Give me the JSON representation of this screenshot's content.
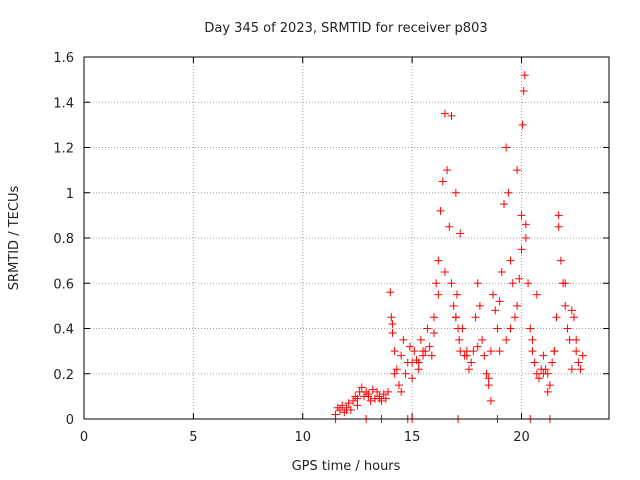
{
  "chart_data": {
    "type": "scatter",
    "title": "Day 345 of 2023, SRMTID for receiver p803",
    "xlabel": "GPS time / hours",
    "ylabel": "SRMTID / TECUs",
    "xlim": [
      0,
      24
    ],
    "ylim": [
      0,
      1.6
    ],
    "xticks": [
      0,
      5,
      10,
      15,
      20
    ],
    "yticks": [
      0,
      0.2,
      0.4,
      0.6,
      0.8,
      1,
      1.2,
      1.4,
      1.6
    ],
    "grid": true,
    "legend": "none",
    "marker": "+",
    "colors": {
      "series": "#ff0000",
      "axes": "#000000",
      "grid": "#a0a0a0"
    },
    "series": [
      {
        "name": "SRMTID",
        "x": [
          11.5,
          11.6,
          11.7,
          11.8,
          11.9,
          12.0,
          12.1,
          12.2,
          12.3,
          12.4,
          12.5,
          12.6,
          12.7,
          12.8,
          12.9,
          13.0,
          13.1,
          13.2,
          13.3,
          13.4,
          13.5,
          13.6,
          13.7,
          13.8,
          13.9,
          14.0,
          14.05,
          14.1,
          14.2,
          14.3,
          14.4,
          14.5,
          14.6,
          14.7,
          14.8,
          14.9,
          15.0,
          15.1,
          15.2,
          15.3,
          15.4,
          15.5,
          15.6,
          15.7,
          15.8,
          15.9,
          16.0,
          16.1,
          16.2,
          16.3,
          16.4,
          16.5,
          16.6,
          16.7,
          16.8,
          16.9,
          17.0,
          17.05,
          17.1,
          17.15,
          17.2,
          17.3,
          17.4,
          17.5,
          17.6,
          17.7,
          17.8,
          17.9,
          18.0,
          18.1,
          18.2,
          18.3,
          18.4,
          18.5,
          18.6,
          18.7,
          18.8,
          18.9,
          19.0,
          19.1,
          19.2,
          19.3,
          19.4,
          19.5,
          19.6,
          19.7,
          19.8,
          19.9,
          20.0,
          20.05,
          20.1,
          20.15,
          20.2,
          20.3,
          20.4,
          20.5,
          20.6,
          20.7,
          20.8,
          20.9,
          21.0,
          21.1,
          21.2,
          21.3,
          21.4,
          21.5,
          21.6,
          21.7,
          21.8,
          21.9,
          22.0,
          22.1,
          22.2,
          22.3,
          22.4,
          22.5,
          22.6,
          22.7,
          22.8,
          12.0,
          12.5,
          13.0,
          13.5,
          14.2,
          14.5,
          15.0,
          15.5,
          16.0,
          16.5,
          17.0,
          17.5,
          18.0,
          18.5,
          19.0,
          19.5,
          20.0,
          20.5,
          21.0,
          21.5,
          22.0,
          22.5,
          16.8,
          17.0,
          17.2,
          19.8,
          20.2,
          21.7,
          14.1,
          15.3,
          16.2,
          18.6,
          19.3,
          20.7,
          21.2,
          22.3,
          11.5,
          12.9,
          13.6,
          14.8,
          15.0,
          17.1,
          18.9,
          20.4,
          21.3
        ],
        "y": [
          0.02,
          0.05,
          0.04,
          0.06,
          0.03,
          0.05,
          0.07,
          0.04,
          0.08,
          0.1,
          0.09,
          0.12,
          0.14,
          0.1,
          0.12,
          0.1,
          0.08,
          0.13,
          0.09,
          0.12,
          0.1,
          0.08,
          0.11,
          0.09,
          0.12,
          0.56,
          0.45,
          0.38,
          0.3,
          0.22,
          0.15,
          0.28,
          0.35,
          0.2,
          0.25,
          0.32,
          0.18,
          0.3,
          0.26,
          0.22,
          0.35,
          0.28,
          0.3,
          0.4,
          0.32,
          0.28,
          0.45,
          0.6,
          0.7,
          0.92,
          1.05,
          1.35,
          1.1,
          0.85,
          0.6,
          0.5,
          0.45,
          0.55,
          0.4,
          0.35,
          0.3,
          0.4,
          0.28,
          0.3,
          0.22,
          0.25,
          0.3,
          0.45,
          0.6,
          0.5,
          0.35,
          0.28,
          0.2,
          0.15,
          0.3,
          0.55,
          0.48,
          0.4,
          0.3,
          0.65,
          0.95,
          1.2,
          1.0,
          0.7,
          0.6,
          0.45,
          0.5,
          0.62,
          0.9,
          1.3,
          1.45,
          1.52,
          0.86,
          0.6,
          0.4,
          0.3,
          0.25,
          0.2,
          0.18,
          0.22,
          0.28,
          0.22,
          0.2,
          0.15,
          0.25,
          0.3,
          0.45,
          0.85,
          0.7,
          0.6,
          0.5,
          0.4,
          0.35,
          0.48,
          0.45,
          0.3,
          0.25,
          0.22,
          0.28,
          0.04,
          0.06,
          0.11,
          0.09,
          0.2,
          0.12,
          0.25,
          0.3,
          0.38,
          0.65,
          0.45,
          0.28,
          0.32,
          0.18,
          0.52,
          0.4,
          0.75,
          0.35,
          0.2,
          0.3,
          0.6,
          0.35,
          1.34,
          1.0,
          0.82,
          1.1,
          0.8,
          0.9,
          0.42,
          0.25,
          0.55,
          0.08,
          0.35,
          0.55,
          0.12,
          0.22,
          0.0,
          0.0,
          0.0,
          0.0,
          0.0,
          0.0,
          0.0,
          0.0,
          0.0
        ]
      }
    ]
  }
}
